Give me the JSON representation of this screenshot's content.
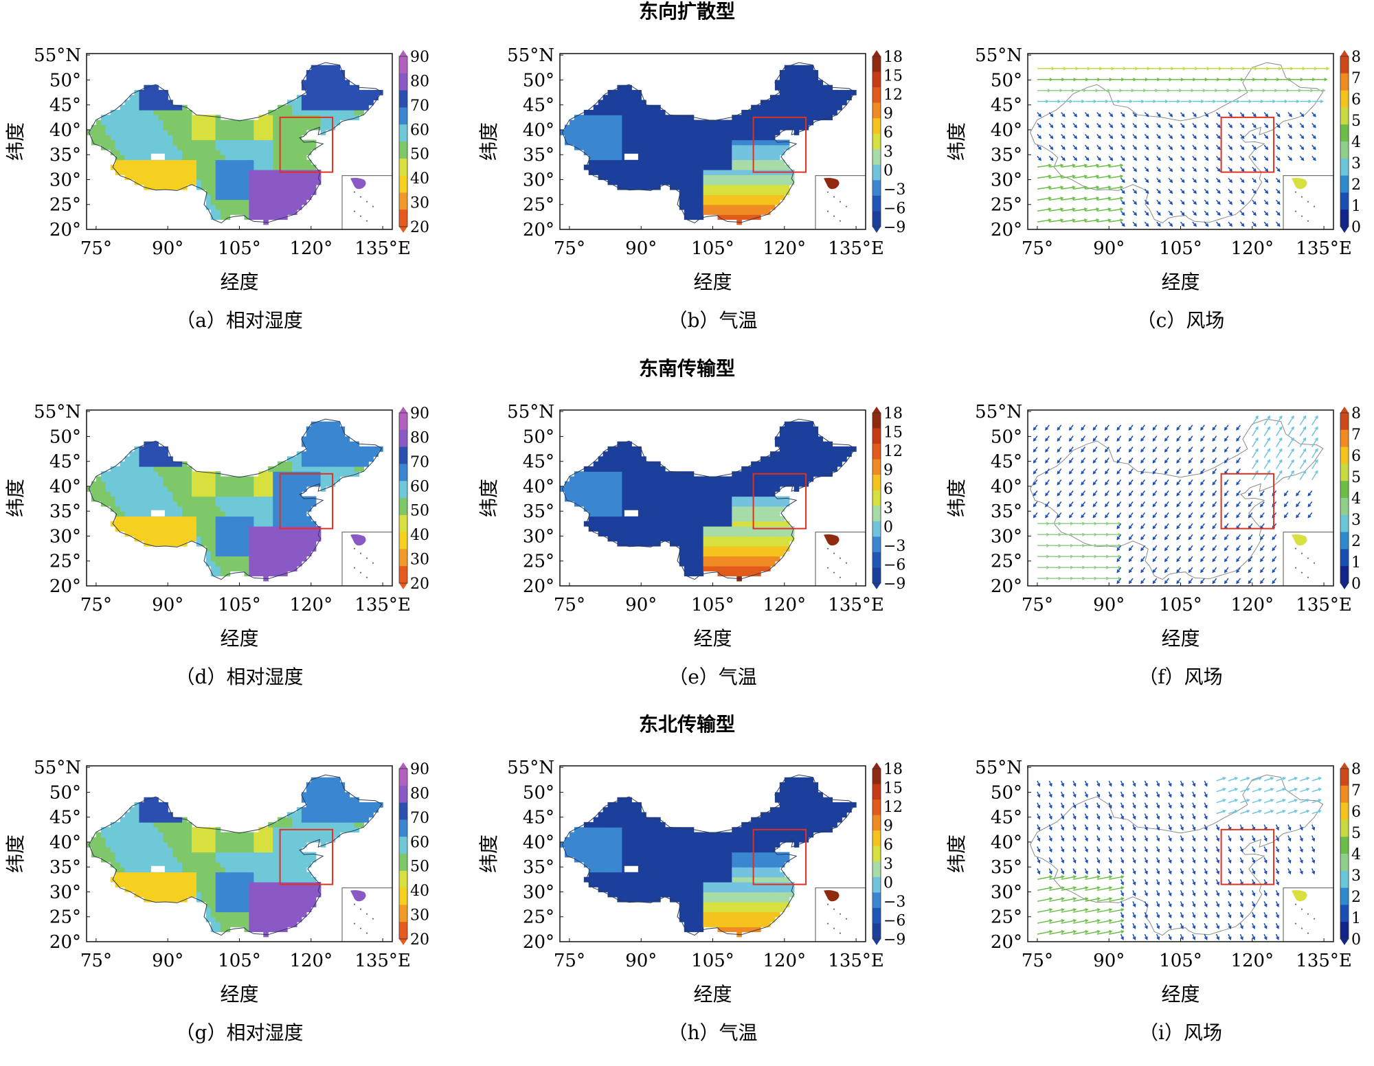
{
  "row_titles": [
    "东向扩散型",
    "东南传输型",
    "东北传输型"
  ],
  "axes": {
    "xlabel": "经度",
    "ylabel": "纬度",
    "xticks": [
      "75°",
      "90°",
      "105°",
      "120°",
      "135°E"
    ],
    "yticks": [
      "55°N",
      "50°",
      "45°",
      "40°",
      "35°",
      "30°",
      "25°",
      "20°"
    ]
  },
  "colorbars": {
    "humidity": [
      "90",
      "80",
      "70",
      "60",
      "50",
      "40",
      "30",
      "20"
    ],
    "temperature": [
      "18",
      "15",
      "12",
      "9",
      "6",
      "3",
      "0",
      "−3",
      "−6",
      "−9"
    ],
    "wind": [
      "8",
      "7",
      "6",
      "5",
      "4",
      "3",
      "2",
      "1",
      "0"
    ]
  },
  "panels": [
    {
      "caption": "（a）相对湿度",
      "kind": "humidity",
      "pattern": 0
    },
    {
      "caption": "（b）气温",
      "kind": "temperature",
      "pattern": 0
    },
    {
      "caption": "（c）风场",
      "kind": "wind",
      "pattern": 0
    },
    {
      "caption": "（d）相对湿度",
      "kind": "humidity",
      "pattern": 1
    },
    {
      "caption": "（e）气温",
      "kind": "temperature",
      "pattern": 1
    },
    {
      "caption": "（f）风场",
      "kind": "wind",
      "pattern": 1
    },
    {
      "caption": "（g）相对湿度",
      "kind": "humidity",
      "pattern": 2
    },
    {
      "caption": "（h）气温",
      "kind": "temperature",
      "pattern": 2
    },
    {
      "caption": "（i）风场",
      "kind": "wind",
      "pattern": 2
    }
  ],
  "colors": {
    "humidity_scale": [
      "#b35fc0",
      "#8a59c6",
      "#2a4fb0",
      "#3a86d0",
      "#6fc8d8",
      "#7ec86a",
      "#d8e040",
      "#f5d020",
      "#f19a2a",
      "#e8591d"
    ],
    "temperature_scale": [
      "#1b3f9a",
      "#2256b6",
      "#3b86d0",
      "#74c3de",
      "#a7dba8",
      "#d8e040",
      "#f5c31d",
      "#f08a22",
      "#e25a1c",
      "#c83a16",
      "#8f2a10"
    ],
    "wind_scale": [
      "#10248a",
      "#1a4fb3",
      "#2e89cf",
      "#6cc6d9",
      "#8fcf8a",
      "#6cbd49",
      "#c9d942",
      "#f5c31d",
      "#f08a22",
      "#cf4a1a"
    ],
    "study_box": "#e03020",
    "frame": "#111111"
  }
}
